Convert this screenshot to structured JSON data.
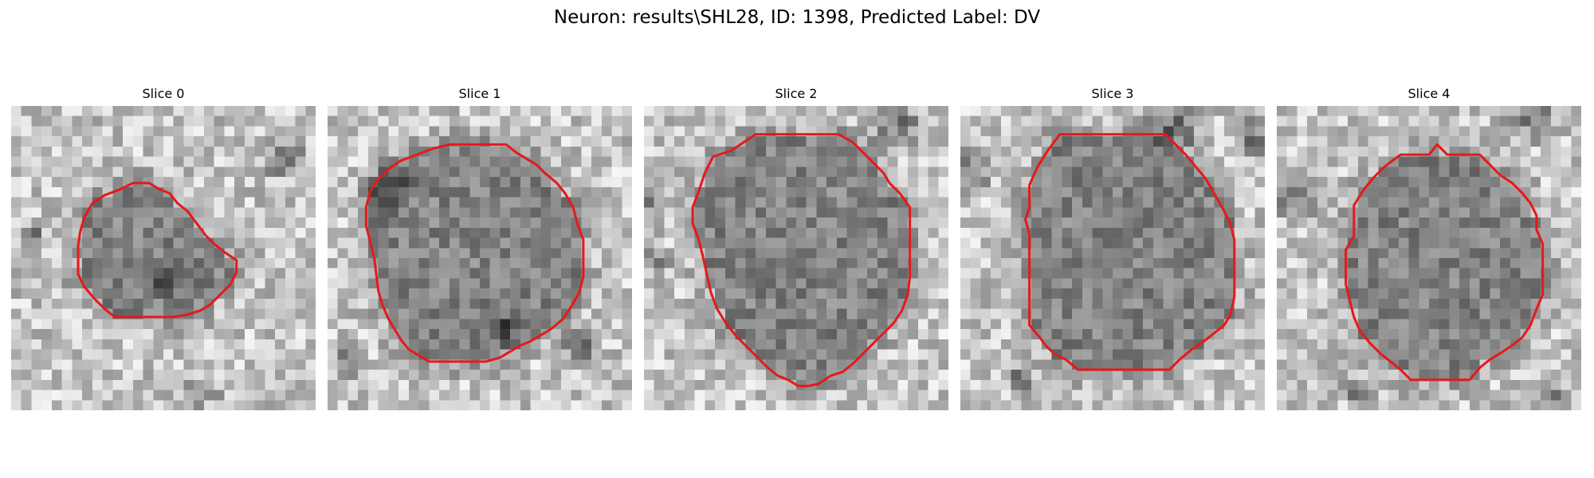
{
  "figure": {
    "title": "Neuron: results\\SHL28, ID: 1398, Predicted Label: DV"
  },
  "colors": {
    "outline": "#e41a1c",
    "background": "#ffffff"
  },
  "panels": [
    {
      "title": "Slice 0"
    },
    {
      "title": "Slice 1"
    },
    {
      "title": "Slice 2"
    },
    {
      "title": "Slice 3"
    },
    {
      "title": "Slice 4"
    }
  ]
}
